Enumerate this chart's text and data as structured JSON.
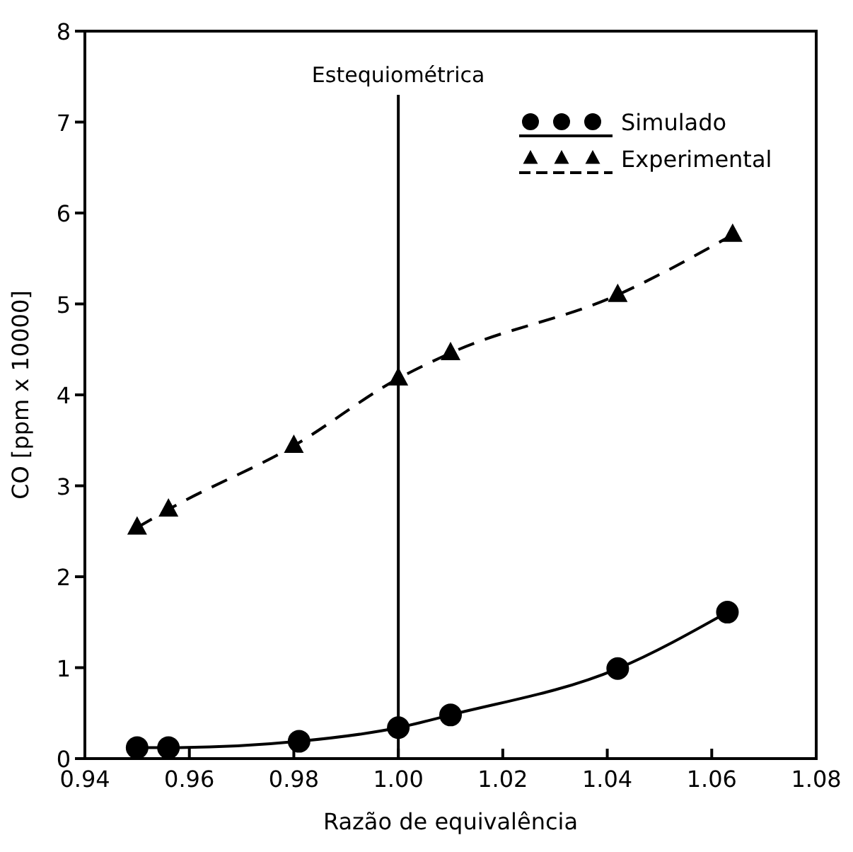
{
  "chart_data": {
    "type": "line",
    "xlabel": "Razão de equivalência",
    "ylabel": "CO [ppm x 10000]",
    "xlim": [
      0.94,
      1.08
    ],
    "xticks": [
      0.94,
      0.96,
      0.98,
      {
        "value": 1.0,
        "label": "1.00"
      },
      1.02,
      1.04,
      1.06,
      1.08
    ],
    "ylim": [
      0,
      8
    ],
    "yticks": [
      0,
      1,
      2,
      3,
      4,
      5,
      6,
      7,
      8
    ],
    "x": [
      0.95,
      0.956,
      0.981,
      1.0,
      1.01,
      1.042,
      1.063
    ],
    "series": [
      {
        "name": "Simulado",
        "color": "#000000",
        "marker": "circle",
        "line_style": "solid",
        "values": [
          0.12,
          0.12,
          0.19,
          0.34,
          0.48,
          0.99,
          1.61
        ]
      },
      {
        "name": "Experimental",
        "color": "#000000",
        "marker": "triangle",
        "line_style": "dashed",
        "x": [
          0.95,
          0.956,
          0.98,
          1.0,
          1.01,
          1.042,
          1.064
        ],
        "values": [
          2.54,
          2.74,
          3.44,
          4.18,
          4.46,
          5.1,
          5.76
        ]
      }
    ],
    "ref_lines": [
      {
        "axis": "x",
        "value": 1.0,
        "label": "Estequiométrica"
      }
    ],
    "legend": "top right",
    "grid": false
  }
}
